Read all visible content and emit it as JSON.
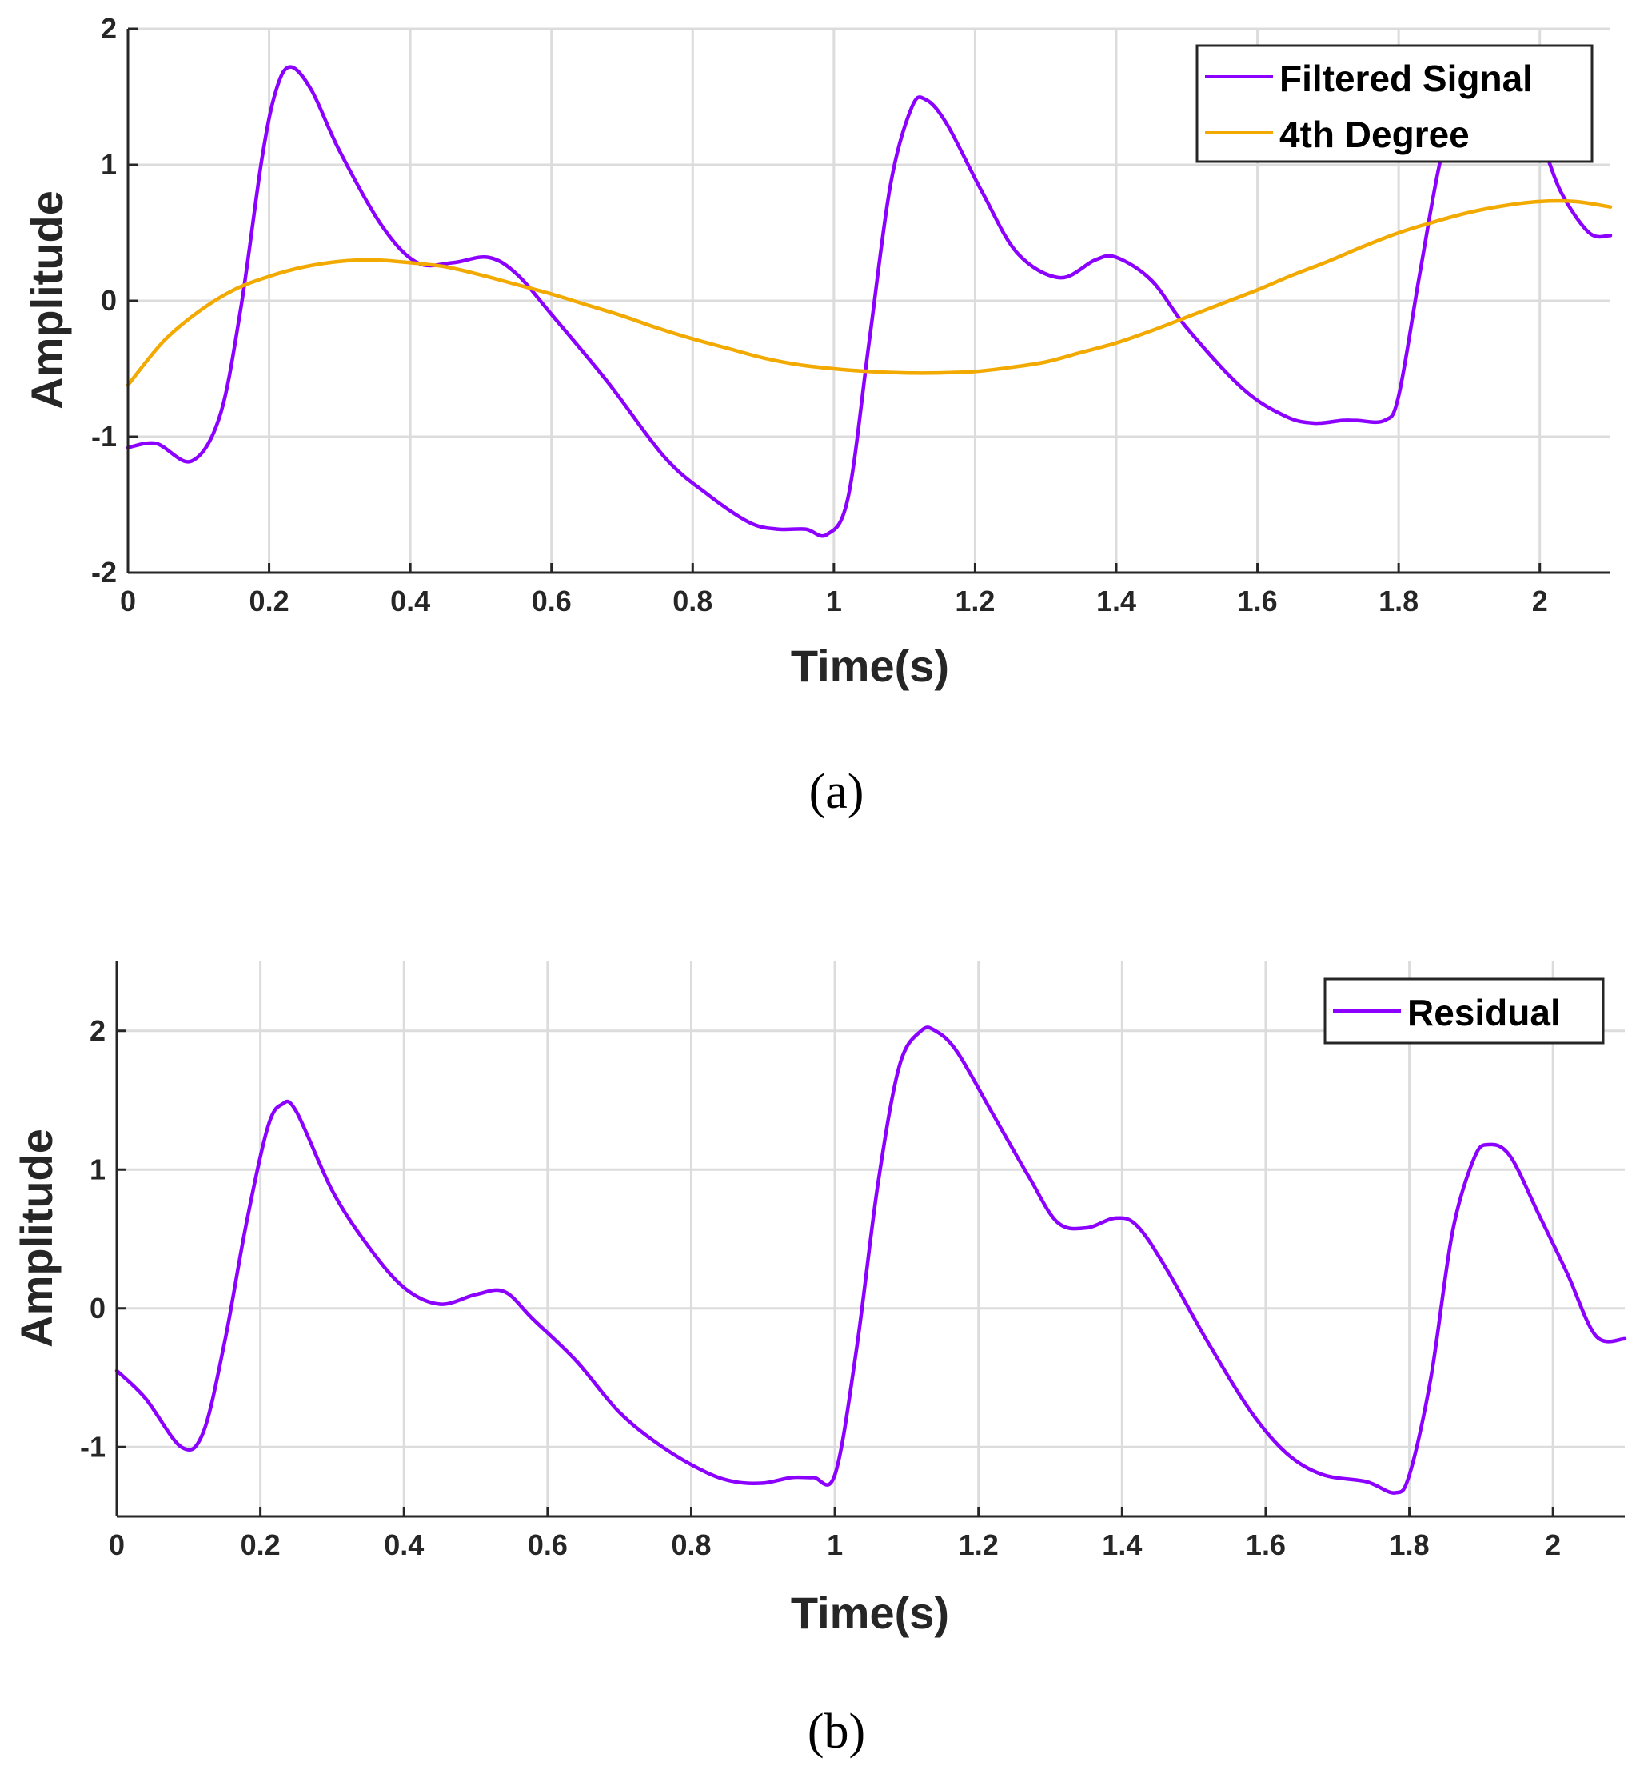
{
  "chart_data": [
    {
      "type": "line",
      "panel_caption": "(a)",
      "xlabel": "Time(s)",
      "ylabel": "Amplitude",
      "xlim": [
        0,
        2.1
      ],
      "ylim": [
        -2,
        2
      ],
      "xticks": [
        0,
        0.2,
        0.4,
        0.6,
        0.8,
        1,
        1.2,
        1.4,
        1.6,
        1.8,
        2
      ],
      "xtick_labels": [
        "0",
        "0.2",
        "0.4",
        "0.6",
        "0.8",
        "1",
        "1.2",
        "1.4",
        "1.6",
        "1.8",
        "2"
      ],
      "yticks": [
        -2,
        -1,
        0,
        1,
        2
      ],
      "ytick_labels": [
        "-2",
        "-1",
        "0",
        "1",
        "2"
      ],
      "grid": true,
      "legend_position": "top-right",
      "series": [
        {
          "name": "Filtered Signal",
          "color": "#8b00ff",
          "x": [
            0,
            0.04,
            0.09,
            0.13,
            0.16,
            0.19,
            0.21,
            0.23,
            0.26,
            0.3,
            0.36,
            0.41,
            0.46,
            0.51,
            0.55,
            0.6,
            0.68,
            0.76,
            0.82,
            0.88,
            0.92,
            0.96,
            0.99,
            1.02,
            1.05,
            1.08,
            1.11,
            1.13,
            1.16,
            1.21,
            1.26,
            1.32,
            1.37,
            1.4,
            1.45,
            1.5,
            1.58,
            1.64,
            1.68,
            1.72,
            1.74,
            1.78,
            1.8,
            1.83,
            1.86,
            1.89,
            1.92,
            1.96,
            2.0,
            2.03,
            2.07,
            2.1
          ],
          "y": [
            -1.08,
            -1.05,
            -1.18,
            -0.85,
            -0.05,
            1.05,
            1.55,
            1.72,
            1.55,
            1.1,
            0.55,
            0.28,
            0.28,
            0.32,
            0.2,
            -0.1,
            -0.6,
            -1.15,
            -1.42,
            -1.63,
            -1.68,
            -1.68,
            -1.72,
            -1.45,
            -0.3,
            0.85,
            1.42,
            1.48,
            1.3,
            0.8,
            0.35,
            0.17,
            0.3,
            0.32,
            0.15,
            -0.2,
            -0.65,
            -0.85,
            -0.9,
            -0.88,
            -0.88,
            -0.88,
            -0.7,
            0.2,
            1.05,
            1.5,
            1.65,
            1.58,
            1.2,
            0.8,
            0.5,
            0.48
          ]
        },
        {
          "name": "4th Degree",
          "color": "#f2a900",
          "x": [
            0,
            0.05,
            0.1,
            0.15,
            0.2,
            0.25,
            0.3,
            0.35,
            0.4,
            0.45,
            0.5,
            0.55,
            0.6,
            0.65,
            0.7,
            0.75,
            0.8,
            0.85,
            0.9,
            0.95,
            1.0,
            1.05,
            1.1,
            1.15,
            1.2,
            1.25,
            1.3,
            1.35,
            1.4,
            1.45,
            1.5,
            1.55,
            1.6,
            1.65,
            1.7,
            1.75,
            1.8,
            1.85,
            1.9,
            1.95,
            2.0,
            2.05,
            2.1
          ],
          "y": [
            -0.62,
            -0.3,
            -0.08,
            0.08,
            0.18,
            0.25,
            0.29,
            0.3,
            0.28,
            0.25,
            0.19,
            0.12,
            0.05,
            -0.03,
            -0.11,
            -0.2,
            -0.28,
            -0.35,
            -0.42,
            -0.47,
            -0.5,
            -0.52,
            -0.53,
            -0.53,
            -0.52,
            -0.49,
            -0.45,
            -0.38,
            -0.31,
            -0.22,
            -0.12,
            -0.02,
            0.08,
            0.19,
            0.29,
            0.4,
            0.5,
            0.58,
            0.65,
            0.7,
            0.73,
            0.73,
            0.69
          ]
        }
      ]
    },
    {
      "type": "line",
      "panel_caption": "(b)",
      "xlabel": "Time(s)",
      "ylabel": "Amplitude",
      "xlim": [
        0,
        2.1
      ],
      "ylim": [
        -1.5,
        2.5
      ],
      "xticks": [
        0,
        0.2,
        0.4,
        0.6,
        0.8,
        1,
        1.2,
        1.4,
        1.6,
        1.8,
        2
      ],
      "xtick_labels": [
        "0",
        "0.2",
        "0.4",
        "0.6",
        "0.8",
        "1",
        "1.2",
        "1.4",
        "1.6",
        "1.8",
        "2"
      ],
      "yticks": [
        -1,
        0,
        1,
        2
      ],
      "ytick_labels": [
        "-1",
        "0",
        "1",
        "2"
      ],
      "grid": true,
      "legend_position": "top-right",
      "series": [
        {
          "name": "Residual",
          "color": "#8b00ff",
          "x": [
            0,
            0.04,
            0.09,
            0.12,
            0.15,
            0.18,
            0.21,
            0.23,
            0.25,
            0.3,
            0.35,
            0.4,
            0.45,
            0.5,
            0.54,
            0.58,
            0.64,
            0.7,
            0.76,
            0.82,
            0.86,
            0.9,
            0.94,
            0.97,
            1.0,
            1.03,
            1.06,
            1.09,
            1.12,
            1.14,
            1.17,
            1.22,
            1.27,
            1.31,
            1.35,
            1.39,
            1.42,
            1.46,
            1.52,
            1.58,
            1.63,
            1.68,
            1.74,
            1.78,
            1.8,
            1.83,
            1.86,
            1.89,
            1.91,
            1.94,
            1.98,
            2.02,
            2.06,
            2.1
          ],
          "y": [
            -0.45,
            -0.65,
            -1.0,
            -0.9,
            -0.25,
            0.6,
            1.3,
            1.47,
            1.42,
            0.85,
            0.45,
            0.15,
            0.03,
            0.1,
            0.12,
            -0.08,
            -0.38,
            -0.75,
            -1.0,
            -1.18,
            -1.25,
            -1.26,
            -1.22,
            -1.22,
            -1.2,
            -0.3,
            0.9,
            1.75,
            2.0,
            2.0,
            1.85,
            1.4,
            0.95,
            0.62,
            0.58,
            0.65,
            0.6,
            0.3,
            -0.25,
            -0.75,
            -1.05,
            -1.2,
            -1.25,
            -1.33,
            -1.2,
            -0.5,
            0.55,
            1.08,
            1.18,
            1.1,
            0.68,
            0.25,
            -0.2,
            -0.22
          ]
        }
      ]
    }
  ]
}
